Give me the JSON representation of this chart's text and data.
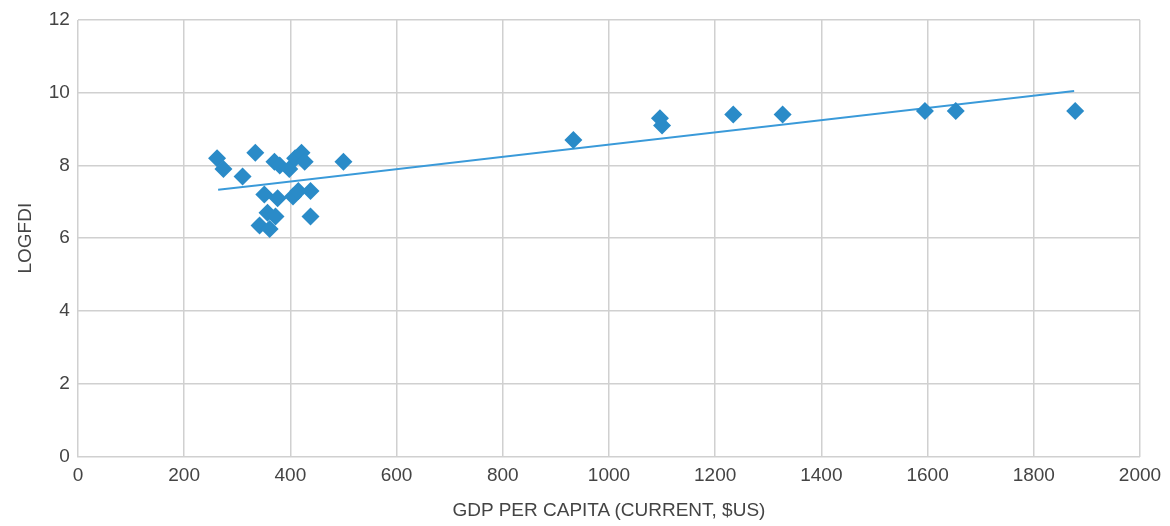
{
  "chart_data": {
    "type": "scatter",
    "xlabel": "GDP PER CAPITA (CURRENT, $US)",
    "ylabel": "LOGFDI",
    "xlim": [
      0,
      2000
    ],
    "xticks": [
      0,
      200,
      400,
      600,
      800,
      1000,
      1200,
      1400,
      1600,
      1800,
      2000
    ],
    "ylim": [
      0,
      12
    ],
    "yticks": [
      0,
      2,
      4,
      6,
      8,
      10,
      12
    ],
    "grid": true,
    "legend": false,
    "marker": "diamond",
    "series": [
      {
        "color": "#2a8bc8",
        "x": [
          262,
          274,
          310,
          334,
          370,
          380,
          398,
          409,
          421,
          427,
          500,
          351,
          376,
          405,
          415,
          438,
          357,
          372,
          342,
          361,
          438,
          933,
          1096,
          1100,
          1234,
          1327,
          1595,
          1653,
          1878
        ],
        "values": [
          8.2,
          7.9,
          7.7,
          8.35,
          8.1,
          8.0,
          7.9,
          8.2,
          8.35,
          8.1,
          8.1,
          7.2,
          7.1,
          7.15,
          7.3,
          7.3,
          6.7,
          6.6,
          6.35,
          6.25,
          6.6,
          8.7,
          9.3,
          9.1,
          9.4,
          9.4,
          9.5,
          9.5,
          9.5
        ]
      },
      {
        "type": "line",
        "marker": "none",
        "color": "#3a9ad9",
        "x": [
          264,
          1876
        ],
        "values": [
          7.33,
          10.05
        ]
      }
    ]
  }
}
